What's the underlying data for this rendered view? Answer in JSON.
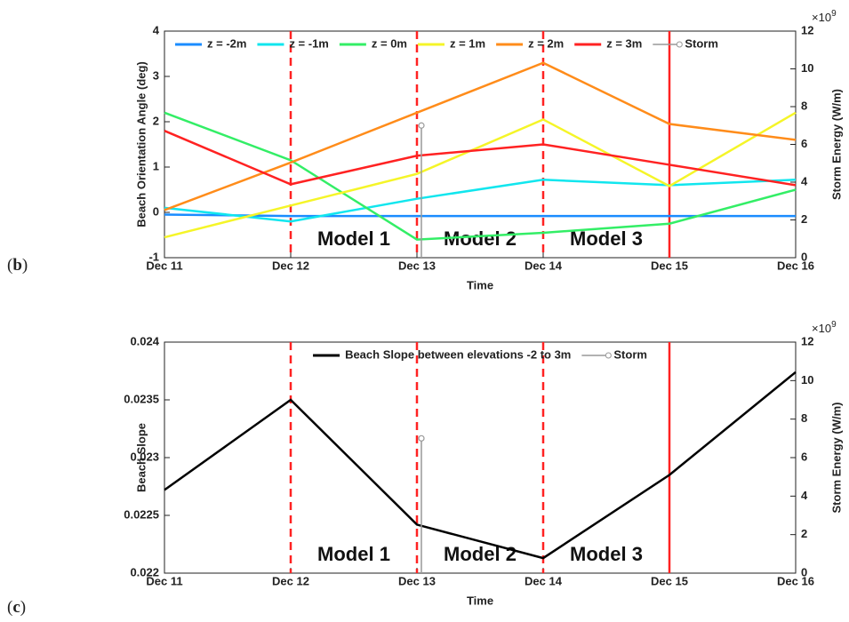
{
  "chart_data": [
    {
      "type": "line",
      "panel_label": {
        "open": "(",
        "letter": "b",
        "close": ")"
      },
      "xlabel": "Time",
      "ylabel": "Beach Orientation Angle (deg)",
      "y2label": "Storm Energy (W/m)",
      "y2_scale": {
        "base": "×10",
        "exponent": "9"
      },
      "categories": [
        "Dec 11",
        "Dec 12",
        "Dec 13",
        "Dec 14",
        "Dec 15",
        "Dec 16"
      ],
      "ylim": [
        -1,
        4
      ],
      "yticks": [
        -1,
        0,
        1,
        2,
        3,
        4
      ],
      "y2lim": [
        0,
        12
      ],
      "y2ticks": [
        0,
        2,
        4,
        6,
        8,
        10,
        12
      ],
      "legend": "top-left",
      "grid": false,
      "series": [
        {
          "name": "z = -2m",
          "color": "#1a8cff",
          "values": [
            -0.05,
            -0.08,
            -0.08,
            -0.08,
            -0.08,
            -0.08
          ]
        },
        {
          "name": "z = -1m",
          "color": "#11e6ee",
          "values": [
            0.1,
            -0.2,
            0.3,
            0.72,
            0.6,
            0.72
          ]
        },
        {
          "name": "z = 0m",
          "color": "#33ee66",
          "values": [
            2.2,
            1.15,
            -0.6,
            -0.45,
            -0.25,
            0.5
          ]
        },
        {
          "name": "z = 1m",
          "color": "#f5f528",
          "values": [
            -0.55,
            0.15,
            0.85,
            2.05,
            0.58,
            2.2
          ]
        },
        {
          "name": "z = 2m",
          "color": "#ff8c1a",
          "values": [
            0.05,
            1.1,
            2.2,
            3.3,
            1.95,
            1.6
          ]
        },
        {
          "name": "z = 3m",
          "color": "#ff2222",
          "values": [
            1.8,
            0.62,
            1.25,
            1.5,
            1.05,
            0.6
          ]
        },
        {
          "name": "Storm",
          "color": "#999999",
          "axis": "y2",
          "style": "stem",
          "values": [
            null,
            null,
            7,
            null,
            null,
            null
          ]
        }
      ],
      "vlines": [
        {
          "category": "Dec 12",
          "style": "dashed",
          "color": "#ff2222"
        },
        {
          "category": "Dec 13",
          "style": "dashed",
          "color": "#ff2222"
        },
        {
          "category": "Dec 14",
          "style": "dashed",
          "color": "#ff2222"
        },
        {
          "category": "Dec 15",
          "style": "solid",
          "color": "#ff2222"
        }
      ],
      "annotations": [
        "Model 1",
        "Model 2",
        "Model 3"
      ]
    },
    {
      "type": "line",
      "panel_label": {
        "open": "(",
        "letter": "c",
        "close": ")"
      },
      "xlabel": "Time",
      "ylabel": "Beach Slope",
      "y2label": "Storm Energy (W/m)",
      "y2_scale": {
        "base": "×10",
        "exponent": "9"
      },
      "categories": [
        "Dec 11",
        "Dec 12",
        "Dec 13",
        "Dec 14",
        "Dec 15",
        "Dec 16"
      ],
      "ylim": [
        0.022,
        0.024
      ],
      "yticks": [
        0.022,
        0.0225,
        0.023,
        0.0235,
        0.024
      ],
      "y2lim": [
        0,
        12
      ],
      "y2ticks": [
        0,
        2,
        4,
        6,
        8,
        10,
        12
      ],
      "legend": "top-center",
      "grid": false,
      "series": [
        {
          "name": "Beach Slope between elevations -2 to 3m",
          "color": "#000000",
          "values": [
            0.02272,
            0.0235,
            0.02242,
            0.02213,
            0.02285,
            0.02374
          ]
        },
        {
          "name": "Storm",
          "color": "#999999",
          "axis": "y2",
          "style": "stem",
          "values": [
            null,
            null,
            7,
            null,
            null,
            null
          ]
        }
      ],
      "vlines": [
        {
          "category": "Dec 12",
          "style": "dashed",
          "color": "#ff2222"
        },
        {
          "category": "Dec 13",
          "style": "dashed",
          "color": "#ff2222"
        },
        {
          "category": "Dec 14",
          "style": "dashed",
          "color": "#ff2222"
        },
        {
          "category": "Dec 15",
          "style": "solid",
          "color": "#ff2222"
        }
      ],
      "annotations": [
        "Model 1",
        "Model 2",
        "Model 3"
      ]
    }
  ]
}
